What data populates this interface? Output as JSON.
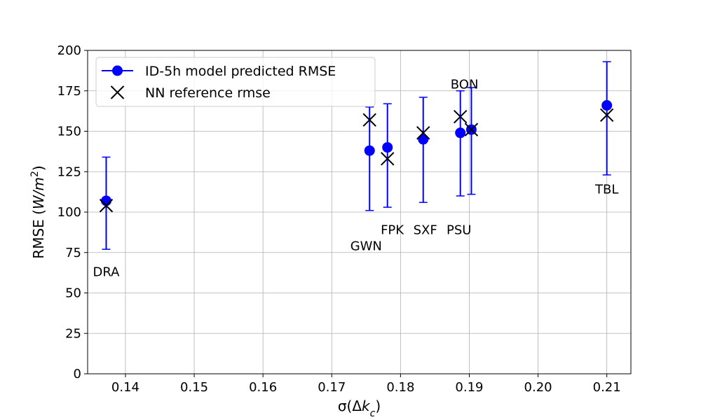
{
  "chart_data": {
    "type": "scatter",
    "xlabel": "σ(Δk_c)",
    "ylabel": "RMSE (W/m²)",
    "xlim": [
      0.1345,
      0.2135
    ],
    "ylim": [
      0,
      200
    ],
    "xticks": [
      "0.14",
      "0.15",
      "0.16",
      "0.17",
      "0.18",
      "0.19",
      "0.20",
      "0.21"
    ],
    "xtick_values": [
      0.14,
      0.15,
      0.16,
      0.17,
      0.18,
      0.19,
      0.2,
      0.21
    ],
    "yticks": [
      "0",
      "25",
      "50",
      "75",
      "100",
      "125",
      "150",
      "175",
      "200"
    ],
    "ytick_values": [
      0,
      25,
      50,
      75,
      100,
      125,
      150,
      175,
      200
    ],
    "grid": true,
    "legend": {
      "placement": "top-left",
      "entries": [
        "ID-5h model predicted RMSE",
        "NN reference rmse"
      ]
    },
    "colors": {
      "model": "#0000ff",
      "reference": "#000000"
    },
    "series": [
      {
        "name": "ID-5h model predicted RMSE",
        "marker": "circle",
        "points": [
          {
            "x": 0.1372,
            "y": 107,
            "err_low": 77,
            "err_high": 134
          },
          {
            "x": 0.1755,
            "y": 138,
            "err_low": 101,
            "err_high": 165
          },
          {
            "x": 0.1781,
            "y": 140,
            "err_low": 103,
            "err_high": 167
          },
          {
            "x": 0.1833,
            "y": 145,
            "err_low": 106,
            "err_high": 171
          },
          {
            "x": 0.1887,
            "y": 149,
            "err_low": 110,
            "err_high": 175
          },
          {
            "x": 0.1903,
            "y": 151,
            "err_low": 111,
            "err_high": 177
          },
          {
            "x": 0.21,
            "y": 166,
            "err_low": 123,
            "err_high": 193
          }
        ]
      },
      {
        "name": "NN reference rmse",
        "marker": "x",
        "points": [
          {
            "x": 0.1372,
            "y": 104
          },
          {
            "x": 0.1755,
            "y": 157
          },
          {
            "x": 0.1781,
            "y": 133
          },
          {
            "x": 0.1833,
            "y": 149
          },
          {
            "x": 0.1887,
            "y": 159
          },
          {
            "x": 0.1903,
            "y": 151
          },
          {
            "x": 0.21,
            "y": 160
          }
        ]
      }
    ],
    "annotations": [
      {
        "text": "DRA",
        "x": 0.1372,
        "y": 63
      },
      {
        "text": "GWN",
        "x": 0.175,
        "y": 79
      },
      {
        "text": "FPK",
        "x": 0.1788,
        "y": 89
      },
      {
        "text": "SXF",
        "x": 0.1836,
        "y": 89
      },
      {
        "text": "PSU",
        "x": 0.1885,
        "y": 89
      },
      {
        "text": "BON",
        "x": 0.1893,
        "y": 179
      },
      {
        "text": "TBL",
        "x": 0.21,
        "y": 114
      }
    ]
  }
}
